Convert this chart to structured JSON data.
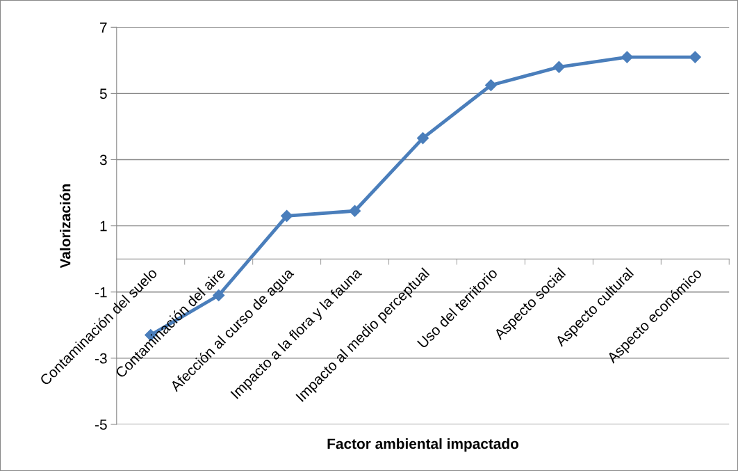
{
  "chart_data": {
    "type": "line",
    "xlabel": "Factor ambiental impactado",
    "ylabel": "Valorización",
    "categories": [
      "Contaminación del suelo",
      "Contaminación del aire",
      "Afección al curso de agua",
      "Impacto a la flora y la fauna",
      "Impacto al medio perceptual",
      "Uso del territorio",
      "Aspecto social",
      "Aspecto cultural",
      "Aspecto económico"
    ],
    "series": [
      {
        "color": "#4a7ebb",
        "values": [
          -2.3,
          -1.1,
          1.3,
          1.45,
          3.65,
          5.25,
          5.8,
          6.1,
          6.1
        ]
      }
    ],
    "ylim": [
      -5,
      7
    ],
    "yticks": [
      -5,
      -3,
      -1,
      1,
      3,
      5,
      7
    ],
    "grid": "y",
    "marker": "diamond",
    "line_style": "solid",
    "legend": false
  }
}
